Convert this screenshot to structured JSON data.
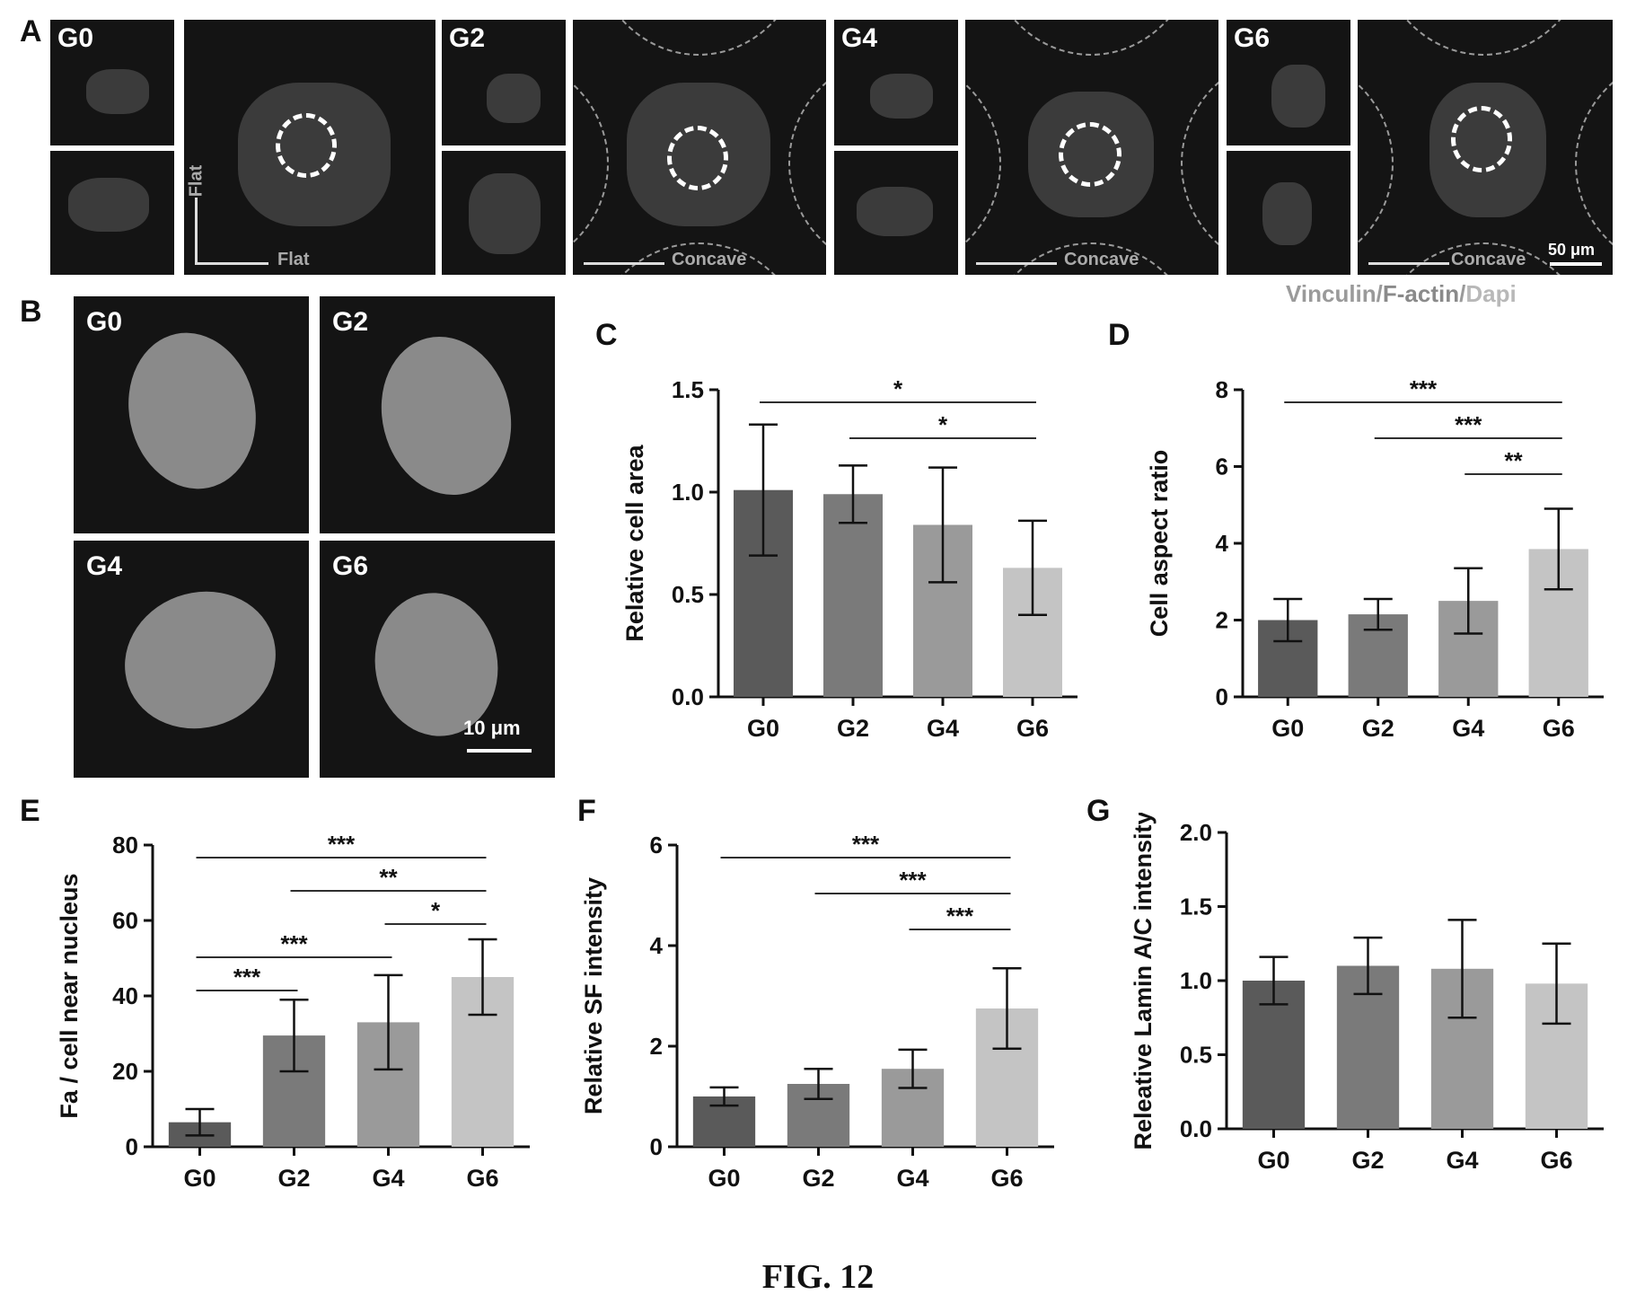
{
  "figure_caption": "FIG. 12",
  "panelA": {
    "letter": "A",
    "groups": [
      "G0",
      "G2",
      "G4",
      "G6"
    ],
    "axis_labels": {
      "g0_vertical": "Flat",
      "g0_horizontal": "Flat",
      "g2_horizontal": "Concave",
      "g4_horizontal": "Concave",
      "g6_horizontal": "Concave"
    },
    "scale": "50 μm",
    "stain_legend": [
      "Vinculin",
      "/",
      "F-actin",
      "/",
      "Dapi"
    ]
  },
  "panelB": {
    "letter": "B",
    "groups": [
      "G0",
      "G2",
      "G4",
      "G6"
    ],
    "scale": "10 μm"
  },
  "chart_data": [
    {
      "panel": "C",
      "type": "bar",
      "categories": [
        "G0",
        "G2",
        "G4",
        "G6"
      ],
      "values": [
        1.01,
        0.99,
        0.84,
        0.63
      ],
      "errors": [
        0.32,
        0.14,
        0.28,
        0.23
      ],
      "ylabel": "Relative cell area",
      "xlabel": "",
      "ylim": [
        0,
        1.5
      ],
      "yticks": [
        "0.0",
        "0.5",
        "1.0",
        "1.5"
      ],
      "bar_colors": [
        "#5a5a5a",
        "#7a7a7a",
        "#9a9a9a",
        "#c4c4c4"
      ],
      "significance": [
        {
          "from": 0,
          "to": 3,
          "label": "*"
        },
        {
          "from": 1,
          "to": 3,
          "label": "*"
        }
      ]
    },
    {
      "panel": "D",
      "type": "bar",
      "categories": [
        "G0",
        "G2",
        "G4",
        "G6"
      ],
      "values": [
        2.0,
        2.15,
        2.5,
        3.85
      ],
      "errors": [
        0.55,
        0.4,
        0.85,
        1.05
      ],
      "ylabel": "Cell aspect ratio",
      "xlabel": "",
      "ylim": [
        0,
        8
      ],
      "yticks": [
        "0",
        "2",
        "4",
        "6",
        "8"
      ],
      "bar_colors": [
        "#5a5a5a",
        "#7a7a7a",
        "#9a9a9a",
        "#c4c4c4"
      ],
      "significance": [
        {
          "from": 0,
          "to": 3,
          "label": "***"
        },
        {
          "from": 1,
          "to": 3,
          "label": "***"
        },
        {
          "from": 2,
          "to": 3,
          "label": "**"
        }
      ]
    },
    {
      "panel": "E",
      "type": "bar",
      "categories": [
        "G0",
        "G2",
        "G4",
        "G6"
      ],
      "values": [
        6.5,
        29.5,
        33,
        45
      ],
      "errors": [
        3.5,
        9.5,
        12.5,
        10
      ],
      "ylabel": "Fa / cell near nucleus",
      "xlabel": "",
      "ylim": [
        0,
        80
      ],
      "yticks": [
        "0",
        "20",
        "40",
        "60",
        "80"
      ],
      "bar_colors": [
        "#5a5a5a",
        "#7a7a7a",
        "#9a9a9a",
        "#c4c4c4"
      ],
      "significance": [
        {
          "from": 0,
          "to": 3,
          "label": "***"
        },
        {
          "from": 1,
          "to": 3,
          "label": "**"
        },
        {
          "from": 2,
          "to": 3,
          "label": "*"
        },
        {
          "from": 0,
          "to": 2,
          "label": "***"
        },
        {
          "from": 0,
          "to": 1,
          "label": "***"
        }
      ]
    },
    {
      "panel": "F",
      "type": "bar",
      "categories": [
        "G0",
        "G2",
        "G4",
        "G6"
      ],
      "values": [
        1.0,
        1.25,
        1.55,
        2.75
      ],
      "errors": [
        0.18,
        0.3,
        0.38,
        0.8
      ],
      "ylabel": "Relative SF intensity",
      "xlabel": "",
      "ylim": [
        0,
        6
      ],
      "yticks": [
        "0",
        "2",
        "4",
        "6"
      ],
      "bar_colors": [
        "#5a5a5a",
        "#7a7a7a",
        "#9a9a9a",
        "#c4c4c4"
      ],
      "significance": [
        {
          "from": 0,
          "to": 3,
          "label": "***"
        },
        {
          "from": 1,
          "to": 3,
          "label": "***"
        },
        {
          "from": 2,
          "to": 3,
          "label": "***"
        }
      ]
    },
    {
      "panel": "G",
      "type": "bar",
      "categories": [
        "G0",
        "G2",
        "G4",
        "G6"
      ],
      "values": [
        1.0,
        1.1,
        1.08,
        0.98
      ],
      "errors": [
        0.16,
        0.19,
        0.33,
        0.27
      ],
      "ylabel": "Releative Lamin A/C intensity",
      "xlabel": "",
      "ylim": [
        0,
        2.0
      ],
      "yticks": [
        "0.0",
        "0.5",
        "1.0",
        "1.5",
        "2.0"
      ],
      "bar_colors": [
        "#5a5a5a",
        "#7a7a7a",
        "#9a9a9a",
        "#c4c4c4"
      ],
      "significance": []
    }
  ]
}
